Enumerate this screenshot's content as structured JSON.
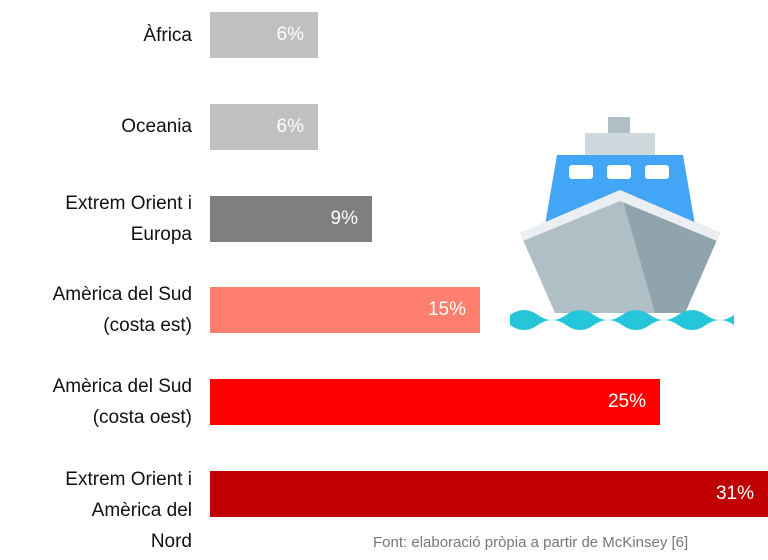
{
  "chart_data": {
    "type": "bar",
    "categories": [
      "Àfrica",
      "Oceania",
      "Extrem Orient i\nEuropa",
      "Amèrica del Sud\n(costa est)",
      "Amèrica del Sud\n(costa oest)",
      "Extrem Orient i\nAmèrica del\nNord"
    ],
    "values": [
      6,
      6,
      9,
      15,
      25,
      31
    ],
    "value_labels": [
      "6%",
      "6%",
      "9%",
      "15%",
      "25%",
      "31%"
    ],
    "colors": [
      "#c0c0c0",
      "#c0c0c0",
      "#7f7f7f",
      "#ff7f6f",
      "#ff0000",
      "#c00000"
    ],
    "source": "Font: elaboració pròpia a partir de McKinsey [6]"
  }
}
